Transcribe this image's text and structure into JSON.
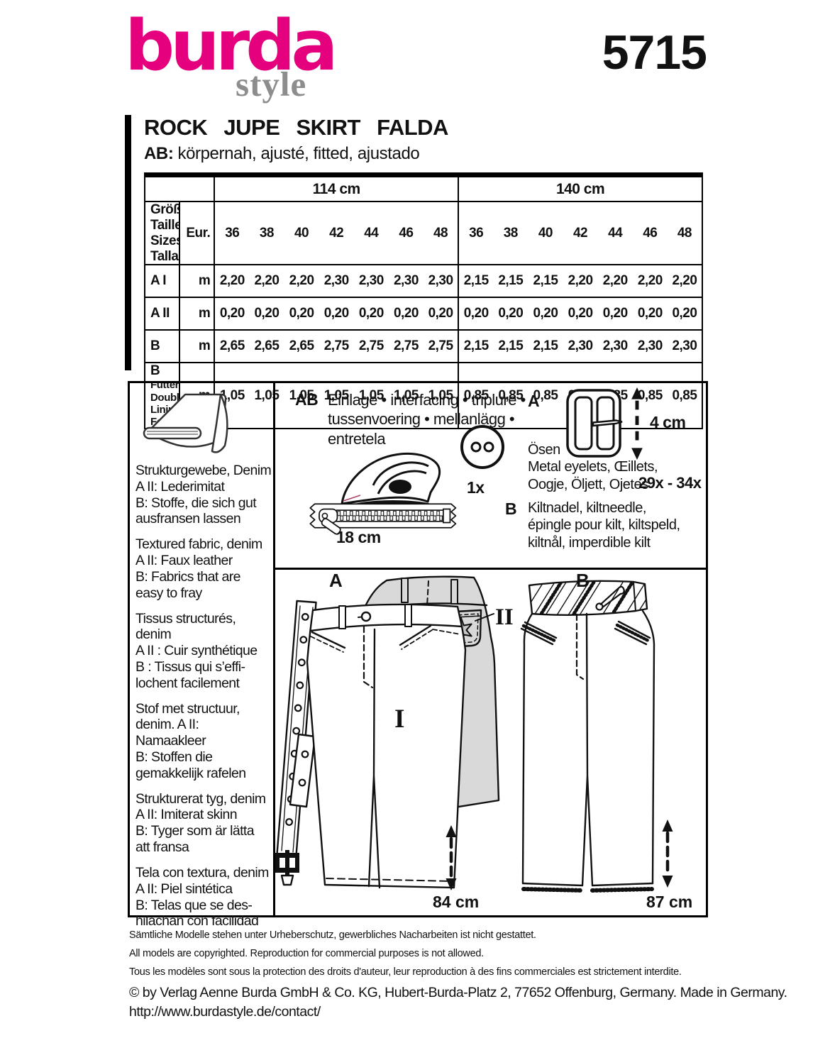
{
  "colors": {
    "brand_pink": "#e5007d",
    "logo_gray": "#8d8d8d",
    "back_view_gray": "#d9d9d9",
    "star_gray": "#c4c4c4"
  },
  "brand": {
    "logo_main": "burda",
    "logo_sub": "style",
    "pattern_number": "5715"
  },
  "header": {
    "title": "ROCK JUPE SKIRT FALDA",
    "subtitle_label": "AB:",
    "subtitle": "körpernah, ajusté, fitted, ajustado"
  },
  "table": {
    "width_groups": [
      "114 cm",
      "140 cm"
    ],
    "size_header": {
      "label": "Größen Tailles\nSizes Tallas",
      "eur": "Eur.",
      "sizes": [
        "36",
        "38",
        "40",
        "42",
        "44",
        "46",
        "48"
      ]
    },
    "rows": [
      {
        "label": "A I",
        "sublabel": "",
        "unit": "m",
        "values_114": [
          "2,20",
          "2,20",
          "2,20",
          "2,30",
          "2,30",
          "2,30",
          "2,30"
        ],
        "values_140": [
          "2,15",
          "2,15",
          "2,15",
          "2,20",
          "2,20",
          "2,20",
          "2,20"
        ]
      },
      {
        "label": "A II",
        "sublabel": "",
        "unit": "m",
        "values_114": [
          "0,20",
          "0,20",
          "0,20",
          "0,20",
          "0,20",
          "0,20",
          "0,20"
        ],
        "values_140": [
          "0,20",
          "0,20",
          "0,20",
          "0,20",
          "0,20",
          "0,20",
          "0,20"
        ]
      },
      {
        "label": "B",
        "sublabel": "",
        "unit": "m",
        "values_114": [
          "2,65",
          "2,65",
          "2,65",
          "2,75",
          "2,75",
          "2,75",
          "2,75"
        ],
        "values_140": [
          "2,15",
          "2,15",
          "2,15",
          "2,30",
          "2,30",
          "2,30",
          "2,30"
        ]
      },
      {
        "label": "B",
        "sublabel": "Futter, Doublure,\nLining, Forro",
        "unit": "m",
        "values_114": [
          "1,05",
          "1,05",
          "1,05",
          "1,05",
          "1,05",
          "1,05",
          "1,05"
        ],
        "values_140": [
          "0,85",
          "0,85",
          "0,85",
          "0,85",
          "0,85",
          "0,85",
          "0,85"
        ]
      }
    ]
  },
  "fabric_info": {
    "paragraphs": [
      "Strukturgewebe, Denim\nA II: Lederimitat\nB: Stoffe, die sich gut\nausfransen lassen",
      "Textured fabric, denim\nA II: Faux leather\nB: Fabrics that are\neasy to fray",
      "Tissus structurés, denim\nA II : Cuir synthétique\nB : Tissus qui s’effi-\nlochent facilement",
      "Stof met structuur,\ndenim. A II: Namaakleer\nB: Stoffen die\ngemakkelijk rafelen",
      "Strukturerat tyg, denim\nA II: Imiterat skinn\nB: Tyger som är lätta\natt fransa",
      "Tela con textura, denim\nA II: Piel sintética\nB: Telas que se des-\nhilachan con facilidad"
    ]
  },
  "notions": {
    "ab_label": "AB",
    "interfacing_text": "Einlage • interfacing • triplure •\ntussenvoering • mellanlägg •\nentretela",
    "button_count": "1x",
    "zipper_length": "18 cm",
    "a_label": "A",
    "buckle_size": "4 cm",
    "eyelets_text": "Ösen\nMetal eyelets, Œillets,\nOogje, Öljett, Ojetes",
    "eyelets_count": "29x - 34x",
    "b_label": "B",
    "kilt_pin_text": "Kiltnadel, kiltneedle,\népingle pour kilt, kiltspeld,\nkiltnål, imperdible kilt"
  },
  "views": {
    "a_label": "A",
    "b_label": "B",
    "view1_label": "I",
    "view2_label": "II",
    "a_length": "84 cm",
    "b_length": "87 cm"
  },
  "footer": {
    "de": "Sämtliche Modelle stehen unter Urheberschutz, gewerbliches Nacharbeiten ist nicht gestattet.",
    "en": "All models are copyrighted. Reproduction for commercial purposes is not allowed.",
    "fr": "Tous les modèles sont sous la protection des droits d'auteur, leur reproduction à des fins commerciales est strictement interdite.",
    "copyright": "© by Verlag Aenne Burda GmbH & Co. KG, Hubert-Burda-Platz 2, 77652 Offenburg, Germany. Made in Germany.",
    "url": "http://www.burdastyle.de/contact/"
  }
}
